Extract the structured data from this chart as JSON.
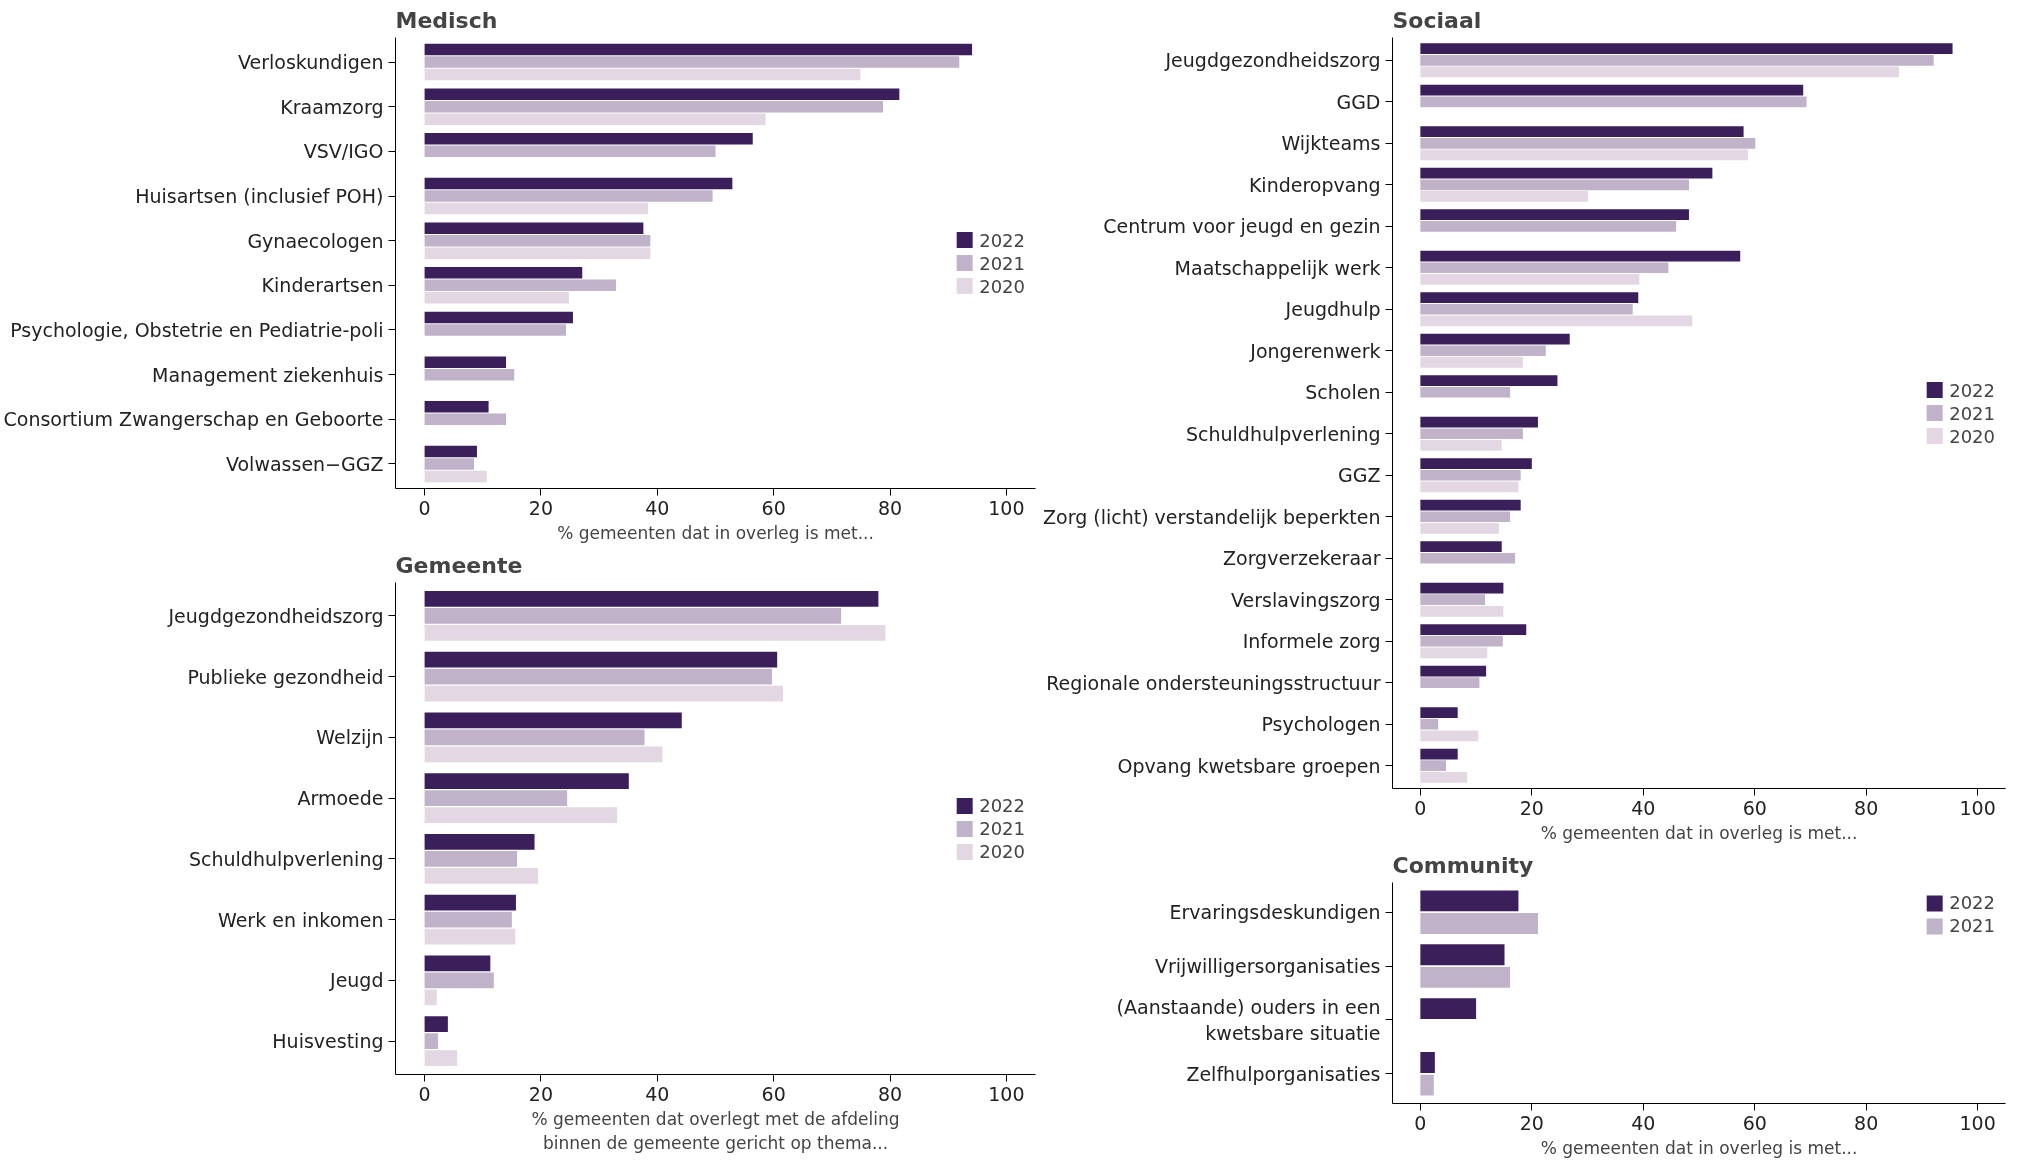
{
  "chart_data": [
    {
      "type": "bar",
      "orientation": "horizontal",
      "title": "Medisch",
      "xlabel": "% gemeenten dat in overleg is met...",
      "legend": "right",
      "grid": false,
      "xlim": [
        -5,
        105
      ],
      "xticks": [
        0,
        20,
        40,
        60,
        80,
        100
      ],
      "categories": [
        "Verloskundigen",
        "Kraamzorg",
        "VSV/IGO",
        "Huisartsen (inclusief POH)",
        "Gynaecologen",
        "Kinderartsen",
        "Psychologie, Obstetrie en Pediatrie-poli",
        "Management ziekenhuis",
        "Consortium Zwangerschap en Geboorte",
        "Volwassen−GGZ"
      ],
      "series": [
        {
          "name": "2022",
          "color": "#3a1f5b",
          "values": [
            94.1,
            81.6,
            56.4,
            52.9,
            37.6,
            27.1,
            25.5,
            14.0,
            11.0,
            9.0
          ]
        },
        {
          "name": "2021",
          "color": "#c0b2c9",
          "values": [
            91.9,
            78.8,
            50.0,
            49.5,
            38.8,
            32.9,
            24.3,
            15.4,
            14.0,
            8.5
          ]
        },
        {
          "name": "2020",
          "color": "#e2d7e3",
          "values": [
            74.9,
            58.6,
            null,
            38.4,
            38.8,
            24.8,
            null,
            null,
            null,
            10.7
          ]
        }
      ]
    },
    {
      "type": "bar",
      "orientation": "horizontal",
      "title": "Gemeente",
      "xlabel": "% gemeenten dat overlegt met de afdeling\nbinnen de gemeente gericht op thema...",
      "legend": "right",
      "grid": false,
      "xlim": [
        -5,
        105
      ],
      "xticks": [
        0,
        20,
        40,
        60,
        80,
        100
      ],
      "categories": [
        "Jeugdgezondheidszorg",
        "Publieke gezondheid",
        "Welzijn",
        "Armoede",
        "Schuldhulpverlening",
        "Werk en inkomen",
        "Jeugd",
        "Huisvesting"
      ],
      "series": [
        {
          "name": "2022",
          "color": "#3a1f5b",
          "values": [
            78.0,
            60.6,
            44.2,
            35.1,
            18.9,
            15.7,
            11.3,
            4.0
          ]
        },
        {
          "name": "2021",
          "color": "#c0b2c9",
          "values": [
            71.6,
            59.7,
            37.8,
            24.5,
            15.9,
            15.0,
            11.9,
            2.3
          ]
        },
        {
          "name": "2020",
          "color": "#e2d7e3",
          "values": [
            79.2,
            61.6,
            40.9,
            33.1,
            19.5,
            15.6,
            2.1,
            5.6
          ]
        }
      ]
    },
    {
      "type": "bar",
      "orientation": "horizontal",
      "title": "Sociaal",
      "xlabel": "% gemeenten dat in overleg is met...",
      "legend": "right",
      "grid": false,
      "xlim": [
        -5,
        105
      ],
      "xticks": [
        0,
        20,
        40,
        60,
        80,
        100
      ],
      "categories": [
        "Jeugdgezondheidszorg",
        "GGD",
        "Wijkteams",
        "Kinderopvang",
        "Centrum voor jeugd en gezin",
        "Maatschappelijk werk",
        "Jeugdhulp",
        "Jongerenwerk",
        "Scholen",
        "Schuldhulpverlening",
        "GGZ",
        "Zorg (licht) verstandelijk beperkten",
        "Zorgverzekeraar",
        "Verslavingszorg",
        "Informele zorg",
        "Regionale ondersteuningsstructuur",
        "Psychologen",
        "Opvang kwetsbare groepen"
      ],
      "series": [
        {
          "name": "2022",
          "color": "#3a1f5b",
          "values": [
            95.5,
            68.7,
            58.0,
            52.4,
            48.2,
            57.4,
            39.1,
            26.8,
            24.6,
            21.1,
            20.0,
            18.0,
            14.6,
            14.9,
            19.0,
            11.8,
            6.7,
            6.7
          ]
        },
        {
          "name": "2021",
          "color": "#c0b2c9",
          "values": [
            92.1,
            69.3,
            60.1,
            48.2,
            45.9,
            44.5,
            38.1,
            22.5,
            16.1,
            18.4,
            18.0,
            16.1,
            17.0,
            11.6,
            14.8,
            10.6,
            3.2,
            4.6
          ]
        },
        {
          "name": "2020",
          "color": "#e2d7e3",
          "values": [
            85.9,
            null,
            58.8,
            30.1,
            null,
            39.3,
            48.8,
            18.4,
            null,
            14.6,
            17.6,
            14.1,
            null,
            14.9,
            12.0,
            null,
            10.4,
            8.4
          ]
        }
      ]
    },
    {
      "type": "bar",
      "orientation": "horizontal",
      "title": "Community",
      "xlabel": "% gemeenten dat in overleg is met...",
      "legend": "top right",
      "grid": false,
      "xlim": [
        -5,
        105
      ],
      "xticks": [
        0,
        20,
        40,
        60,
        80,
        100
      ],
      "categories": [
        "Ervaringsdeskundigen",
        "Vrijwilligersorganisaties",
        "(Aanstaande) ouders in een\nkwetsbare situatie",
        "Zelfhulporganisaties"
      ],
      "series": [
        {
          "name": "2022",
          "color": "#3a1f5b",
          "values": [
            17.6,
            15.1,
            10.0,
            2.6
          ]
        },
        {
          "name": "2021",
          "color": "#c0b2c9",
          "values": [
            21.1,
            16.1,
            null,
            2.4
          ]
        }
      ]
    }
  ]
}
